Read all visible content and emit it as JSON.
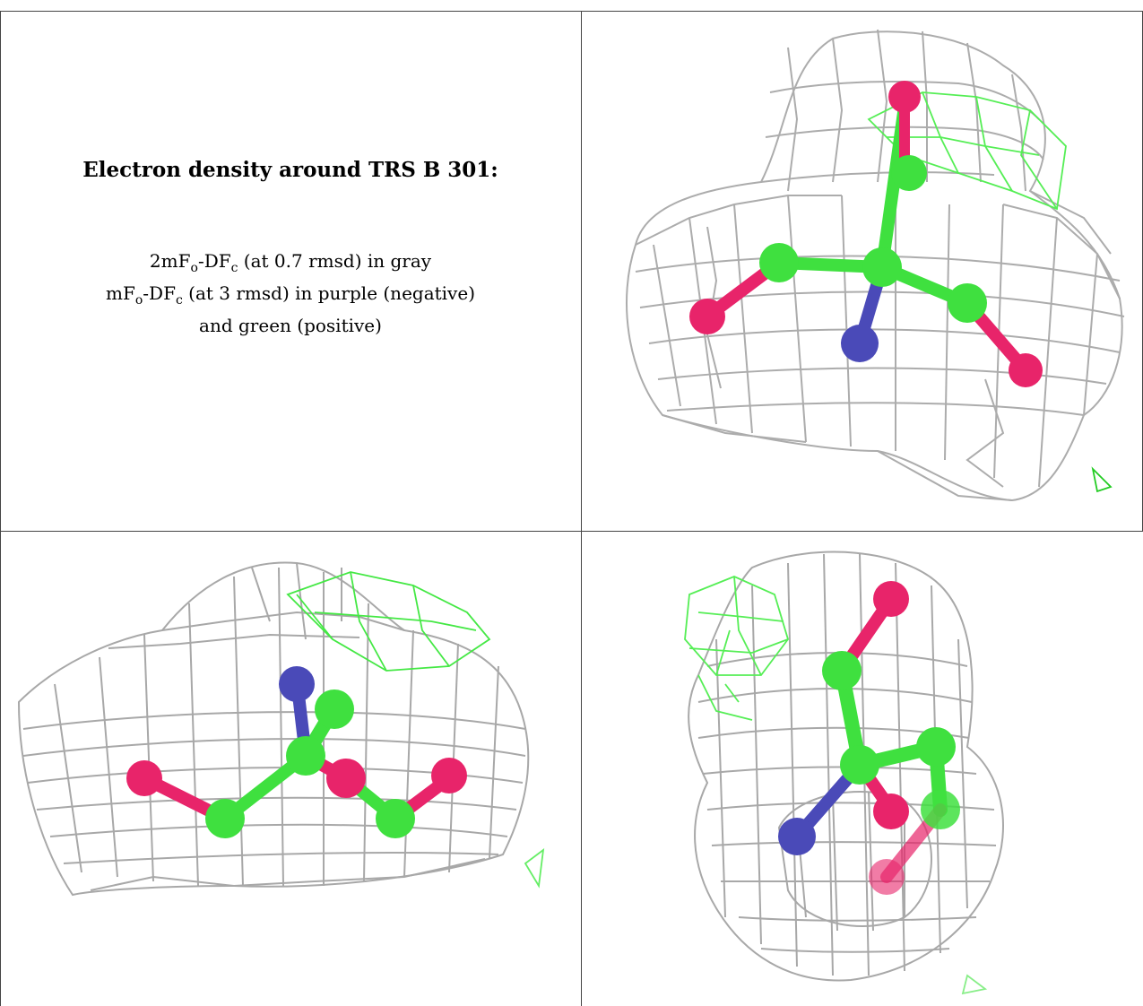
{
  "caption": {
    "title": "Electron density around TRS B 301:",
    "line1_parts": [
      "2mF",
      "o",
      "-DF",
      "c",
      " (at 0.7 rmsd) in gray"
    ],
    "line2_parts": [
      "mF",
      "o",
      "-DF",
      "c",
      " (at 3 rmsd) in purple (negative)"
    ],
    "line3": "and green (positive)"
  },
  "colors": {
    "mesh_gray": "#9a9a9a",
    "mesh_green": "#33dd33",
    "carbon": "#3fe03f",
    "oxygen": "#e8246a",
    "nitrogen": "#4a4ab8",
    "border": "#444444"
  }
}
